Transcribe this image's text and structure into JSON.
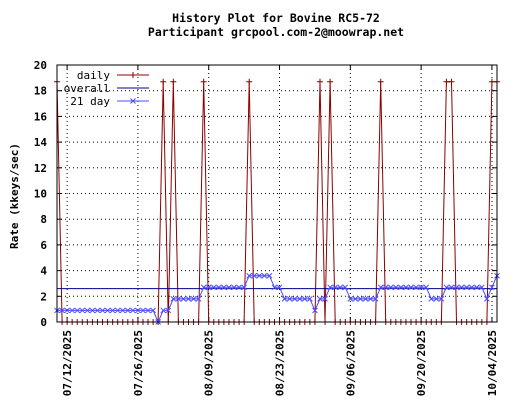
{
  "chart_data": {
    "type": "line",
    "title": "History Plot for Bovine RC5-72",
    "subtitle": "Participant grcpool.com-2@moowrap.net",
    "xlabel": "",
    "ylabel": "Rate (kkeys/sec)",
    "ylim": [
      0,
      20
    ],
    "y_ticks": [
      0,
      2,
      4,
      6,
      8,
      10,
      12,
      14,
      16,
      18,
      20
    ],
    "x_range": [
      "2025-07-10",
      "2025-10-05"
    ],
    "x_tick_labels": [
      "07/12/2025",
      "07/26/2025",
      "08/09/2025",
      "08/23/2025",
      "09/06/2025",
      "09/20/2025",
      "10/04/2025"
    ],
    "x_tick_dates": [
      "2025-07-12",
      "2025-07-26",
      "2025-08-09",
      "2025-08-23",
      "2025-09-06",
      "2025-09-20",
      "2025-10-04"
    ],
    "grid": true,
    "legend_position": "top-left",
    "series": [
      {
        "name": "daily",
        "color": "#8b0000",
        "marker": "plus",
        "points": [
          [
            "2025-07-10",
            18.7
          ],
          [
            "2025-07-11",
            0
          ],
          [
            "2025-07-12",
            0
          ],
          [
            "2025-07-13",
            0
          ],
          [
            "2025-07-14",
            0
          ],
          [
            "2025-07-15",
            0
          ],
          [
            "2025-07-16",
            0
          ],
          [
            "2025-07-17",
            0
          ],
          [
            "2025-07-18",
            0
          ],
          [
            "2025-07-19",
            0
          ],
          [
            "2025-07-20",
            0
          ],
          [
            "2025-07-21",
            0
          ],
          [
            "2025-07-22",
            0
          ],
          [
            "2025-07-23",
            0
          ],
          [
            "2025-07-24",
            0
          ],
          [
            "2025-07-25",
            0
          ],
          [
            "2025-07-26",
            0
          ],
          [
            "2025-07-27",
            0
          ],
          [
            "2025-07-28",
            0
          ],
          [
            "2025-07-29",
            0
          ],
          [
            "2025-07-30",
            0
          ],
          [
            "2025-07-31",
            18.7
          ],
          [
            "2025-08-01",
            0
          ],
          [
            "2025-08-02",
            18.7
          ],
          [
            "2025-08-03",
            0
          ],
          [
            "2025-08-04",
            0
          ],
          [
            "2025-08-05",
            0
          ],
          [
            "2025-08-06",
            0
          ],
          [
            "2025-08-07",
            0
          ],
          [
            "2025-08-08",
            18.7
          ],
          [
            "2025-08-09",
            0
          ],
          [
            "2025-08-10",
            0
          ],
          [
            "2025-08-11",
            0
          ],
          [
            "2025-08-12",
            0
          ],
          [
            "2025-08-13",
            0
          ],
          [
            "2025-08-14",
            0
          ],
          [
            "2025-08-15",
            0
          ],
          [
            "2025-08-16",
            0
          ],
          [
            "2025-08-17",
            18.7
          ],
          [
            "2025-08-18",
            0
          ],
          [
            "2025-08-19",
            0
          ],
          [
            "2025-08-20",
            0
          ],
          [
            "2025-08-21",
            0
          ],
          [
            "2025-08-22",
            0
          ],
          [
            "2025-08-23",
            0
          ],
          [
            "2025-08-24",
            0
          ],
          [
            "2025-08-25",
            0
          ],
          [
            "2025-08-26",
            0
          ],
          [
            "2025-08-27",
            0
          ],
          [
            "2025-08-28",
            0
          ],
          [
            "2025-08-29",
            0
          ],
          [
            "2025-08-30",
            0
          ],
          [
            "2025-08-31",
            18.7
          ],
          [
            "2025-09-01",
            0
          ],
          [
            "2025-09-02",
            18.7
          ],
          [
            "2025-09-03",
            0
          ],
          [
            "2025-09-04",
            0
          ],
          [
            "2025-09-05",
            0
          ],
          [
            "2025-09-06",
            0
          ],
          [
            "2025-09-07",
            0
          ],
          [
            "2025-09-08",
            0
          ],
          [
            "2025-09-09",
            0
          ],
          [
            "2025-09-10",
            0
          ],
          [
            "2025-09-11",
            0
          ],
          [
            "2025-09-12",
            18.7
          ],
          [
            "2025-09-13",
            0
          ],
          [
            "2025-09-14",
            0
          ],
          [
            "2025-09-15",
            0
          ],
          [
            "2025-09-16",
            0
          ],
          [
            "2025-09-17",
            0
          ],
          [
            "2025-09-18",
            0
          ],
          [
            "2025-09-19",
            0
          ],
          [
            "2025-09-20",
            0
          ],
          [
            "2025-09-21",
            0
          ],
          [
            "2025-09-22",
            0
          ],
          [
            "2025-09-23",
            0
          ],
          [
            "2025-09-24",
            0
          ],
          [
            "2025-09-25",
            18.7
          ],
          [
            "2025-09-26",
            18.7
          ],
          [
            "2025-09-27",
            0
          ],
          [
            "2025-09-28",
            0
          ],
          [
            "2025-09-29",
            0
          ],
          [
            "2025-09-30",
            0
          ],
          [
            "2025-10-01",
            0
          ],
          [
            "2025-10-02",
            0
          ],
          [
            "2025-10-03",
            0
          ],
          [
            "2025-10-04",
            18.7
          ],
          [
            "2025-10-05",
            18.7
          ]
        ]
      },
      {
        "name": "overall",
        "color": "#00008b",
        "marker": "none",
        "points": [
          [
            "2025-07-10",
            2.6
          ],
          [
            "2025-10-05",
            2.6
          ]
        ]
      },
      {
        "name": "21 day",
        "color": "#4c4cff",
        "marker": "x",
        "points": [
          [
            "2025-07-10",
            0.9
          ],
          [
            "2025-07-11",
            0.9
          ],
          [
            "2025-07-12",
            0.9
          ],
          [
            "2025-07-13",
            0.9
          ],
          [
            "2025-07-14",
            0.9
          ],
          [
            "2025-07-15",
            0.9
          ],
          [
            "2025-07-16",
            0.9
          ],
          [
            "2025-07-17",
            0.9
          ],
          [
            "2025-07-18",
            0.9
          ],
          [
            "2025-07-19",
            0.9
          ],
          [
            "2025-07-20",
            0.9
          ],
          [
            "2025-07-21",
            0.9
          ],
          [
            "2025-07-22",
            0.9
          ],
          [
            "2025-07-23",
            0.9
          ],
          [
            "2025-07-24",
            0.9
          ],
          [
            "2025-07-25",
            0.9
          ],
          [
            "2025-07-26",
            0.9
          ],
          [
            "2025-07-27",
            0.9
          ],
          [
            "2025-07-28",
            0.9
          ],
          [
            "2025-07-29",
            0.9
          ],
          [
            "2025-07-30",
            0.0
          ],
          [
            "2025-07-31",
            0.9
          ],
          [
            "2025-08-01",
            0.9
          ],
          [
            "2025-08-02",
            1.8
          ],
          [
            "2025-08-03",
            1.8
          ],
          [
            "2025-08-04",
            1.8
          ],
          [
            "2025-08-05",
            1.8
          ],
          [
            "2025-08-06",
            1.8
          ],
          [
            "2025-08-07",
            1.8
          ],
          [
            "2025-08-08",
            2.7
          ],
          [
            "2025-08-09",
            2.7
          ],
          [
            "2025-08-10",
            2.7
          ],
          [
            "2025-08-11",
            2.7
          ],
          [
            "2025-08-12",
            2.7
          ],
          [
            "2025-08-13",
            2.7
          ],
          [
            "2025-08-14",
            2.7
          ],
          [
            "2025-08-15",
            2.7
          ],
          [
            "2025-08-16",
            2.7
          ],
          [
            "2025-08-17",
            3.6
          ],
          [
            "2025-08-18",
            3.6
          ],
          [
            "2025-08-19",
            3.6
          ],
          [
            "2025-08-20",
            3.6
          ],
          [
            "2025-08-21",
            3.6
          ],
          [
            "2025-08-22",
            2.7
          ],
          [
            "2025-08-23",
            2.7
          ],
          [
            "2025-08-24",
            1.8
          ],
          [
            "2025-08-25",
            1.8
          ],
          [
            "2025-08-26",
            1.8
          ],
          [
            "2025-08-27",
            1.8
          ],
          [
            "2025-08-28",
            1.8
          ],
          [
            "2025-08-29",
            1.8
          ],
          [
            "2025-08-30",
            0.9
          ],
          [
            "2025-08-31",
            1.8
          ],
          [
            "2025-09-01",
            1.8
          ],
          [
            "2025-09-02",
            2.7
          ],
          [
            "2025-09-03",
            2.7
          ],
          [
            "2025-09-04",
            2.7
          ],
          [
            "2025-09-05",
            2.7
          ],
          [
            "2025-09-06",
            1.8
          ],
          [
            "2025-09-07",
            1.8
          ],
          [
            "2025-09-08",
            1.8
          ],
          [
            "2025-09-09",
            1.8
          ],
          [
            "2025-09-10",
            1.8
          ],
          [
            "2025-09-11",
            1.8
          ],
          [
            "2025-09-12",
            2.7
          ],
          [
            "2025-09-13",
            2.7
          ],
          [
            "2025-09-14",
            2.7
          ],
          [
            "2025-09-15",
            2.7
          ],
          [
            "2025-09-16",
            2.7
          ],
          [
            "2025-09-17",
            2.7
          ],
          [
            "2025-09-18",
            2.7
          ],
          [
            "2025-09-19",
            2.7
          ],
          [
            "2025-09-20",
            2.7
          ],
          [
            "2025-09-21",
            2.7
          ],
          [
            "2025-09-22",
            1.8
          ],
          [
            "2025-09-23",
            1.8
          ],
          [
            "2025-09-24",
            1.8
          ],
          [
            "2025-09-25",
            2.7
          ],
          [
            "2025-09-26",
            2.7
          ],
          [
            "2025-09-27",
            2.7
          ],
          [
            "2025-09-28",
            2.7
          ],
          [
            "2025-09-29",
            2.7
          ],
          [
            "2025-09-30",
            2.7
          ],
          [
            "2025-10-01",
            2.7
          ],
          [
            "2025-10-02",
            2.7
          ],
          [
            "2025-10-03",
            1.8
          ],
          [
            "2025-10-04",
            2.7
          ],
          [
            "2025-10-05",
            3.6
          ]
        ]
      }
    ]
  }
}
